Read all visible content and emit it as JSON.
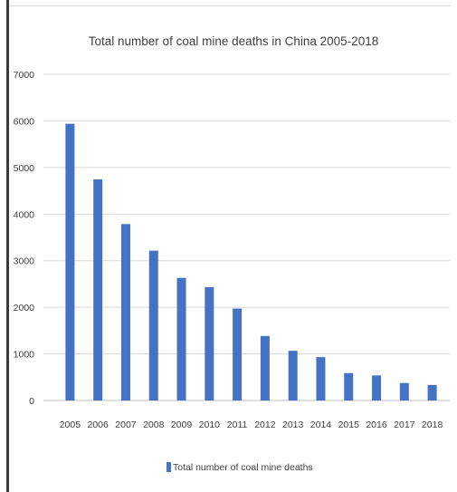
{
  "chart_data": {
    "type": "bar",
    "title": "Total number of coal mine deaths in China 2005-2018",
    "xlabel": "",
    "ylabel": "",
    "categories": [
      "2005",
      "2006",
      "2007",
      "2008",
      "2009",
      "2010",
      "2011",
      "2012",
      "2013",
      "2014",
      "2015",
      "2016",
      "2017",
      "2018"
    ],
    "series": [
      {
        "name": "Total number of coal mine deaths",
        "values": [
          5938,
          4746,
          3786,
          3215,
          2631,
          2433,
          1973,
          1384,
          1067,
          931,
          588,
          538,
          375,
          333
        ],
        "color": "#4472c4"
      }
    ],
    "ylim": [
      0,
      7000
    ],
    "yticks": [
      0,
      1000,
      2000,
      3000,
      4000,
      5000,
      6000,
      7000
    ],
    "grid": true,
    "legend": "bottom"
  }
}
